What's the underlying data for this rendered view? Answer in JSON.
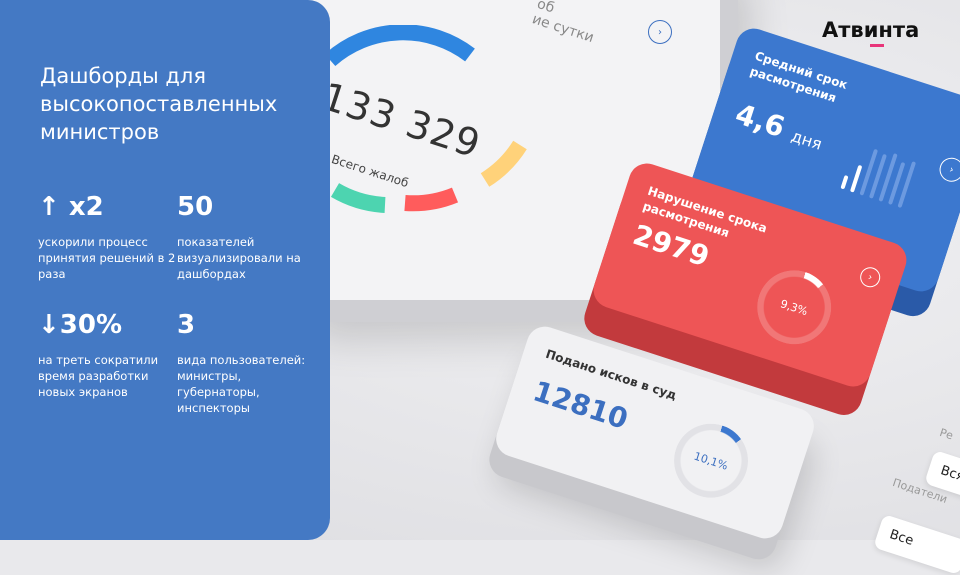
{
  "panel": {
    "title": "Дашборды для высокопоставленных министров",
    "stats": [
      {
        "value": "↑ x2",
        "desc": "ускорили процесс принятия решений в 2 раза"
      },
      {
        "value": "50",
        "desc": "показателей визуализировали на дашбордах"
      },
      {
        "value": "↓30%",
        "desc": "на треть сократили время разработки новых экранов"
      },
      {
        "value": "3",
        "desc": "вида пользователей: министры, губернаторы, инспекторы"
      }
    ]
  },
  "logo": "Атвинта",
  "colors": {
    "panel": "#4479c4",
    "blue_card": "#3c78cf",
    "red_card": "#ee5556",
    "accent": "#e8357a"
  },
  "main_card": {
    "top_text_1": "об",
    "top_text_2": "ие сутки",
    "total": "133 329",
    "total_label": "Всего жалоб",
    "segments": [
      "#2f86e0",
      "#ffd27a",
      "#ff5c5c",
      "#4dd4b0"
    ]
  },
  "blue_card": {
    "title": "Средний срок расмотрения",
    "value": "4,6",
    "unit": "дня"
  },
  "red_card": {
    "title": "Нарушение срока расмотрения",
    "value": "2979",
    "percent": "9,3%",
    "percent_value": 9.3
  },
  "gray_card": {
    "title": "Подано исков в суд",
    "value": "12810",
    "percent": "10,1%",
    "percent_value": 10.1
  },
  "filters": {
    "label_1": "Ре",
    "value_1": "Вся",
    "label_2": "Податели",
    "value_2": "Все"
  }
}
